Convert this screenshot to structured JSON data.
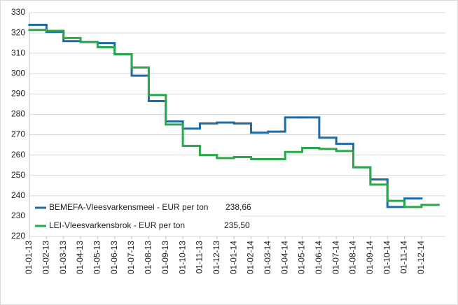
{
  "chart_data": {
    "type": "step",
    "categories": [
      "01-01-13",
      "01-02-13",
      "01-03-13",
      "01-04-13",
      "01-05-13",
      "01-06-13",
      "01-07-13",
      "01-08-13",
      "01-09-13",
      "01-10-13",
      "01-11-13",
      "01-12-13",
      "01-01-14",
      "01-02-14",
      "01-03-14",
      "01-04-14",
      "01-05-14",
      "01-06-14",
      "01-07-14",
      "01-08-14",
      "01-09-14",
      "01-10-14",
      "01-11-14",
      "01-12-14"
    ],
    "series": [
      {
        "name": "BEMEFA-Vleesvarkensmeel - EUR per ton",
        "color": "#1f6ba5",
        "values": [
          324,
          320.5,
          316,
          315.5,
          315,
          309.5,
          299,
          286.5,
          276.5,
          273,
          275.5,
          276,
          275.5,
          271,
          271.5,
          278.5,
          278.5,
          268.5,
          265.5,
          254,
          248,
          234.5,
          238.66,
          null
        ],
        "value_labels": [
          null,
          null,
          null,
          null,
          null,
          null,
          null,
          null,
          null,
          null,
          null,
          null,
          null,
          null,
          null,
          null,
          null,
          null,
          null,
          null,
          null,
          null,
          "238,66",
          null
        ]
      },
      {
        "name": "LEI-Vleesvarkensbrok - EUR per ton",
        "color": "#2aa84a",
        "values": [
          321.5,
          321,
          317.5,
          315.5,
          313,
          309.5,
          303,
          289.5,
          275,
          264.5,
          260,
          258.5,
          259,
          258,
          258,
          261.5,
          263.5,
          263,
          262,
          254,
          245.5,
          237.5,
          234.5,
          235.5
        ],
        "value_labels": [
          null,
          null,
          null,
          null,
          null,
          null,
          null,
          null,
          null,
          null,
          null,
          null,
          null,
          null,
          null,
          null,
          null,
          null,
          null,
          null,
          null,
          null,
          null,
          "235,50"
        ]
      }
    ],
    "ylim": [
      220,
      330
    ],
    "yticks": [
      220,
      230,
      240,
      250,
      260,
      270,
      280,
      290,
      300,
      310,
      320,
      330
    ],
    "grid": true
  }
}
